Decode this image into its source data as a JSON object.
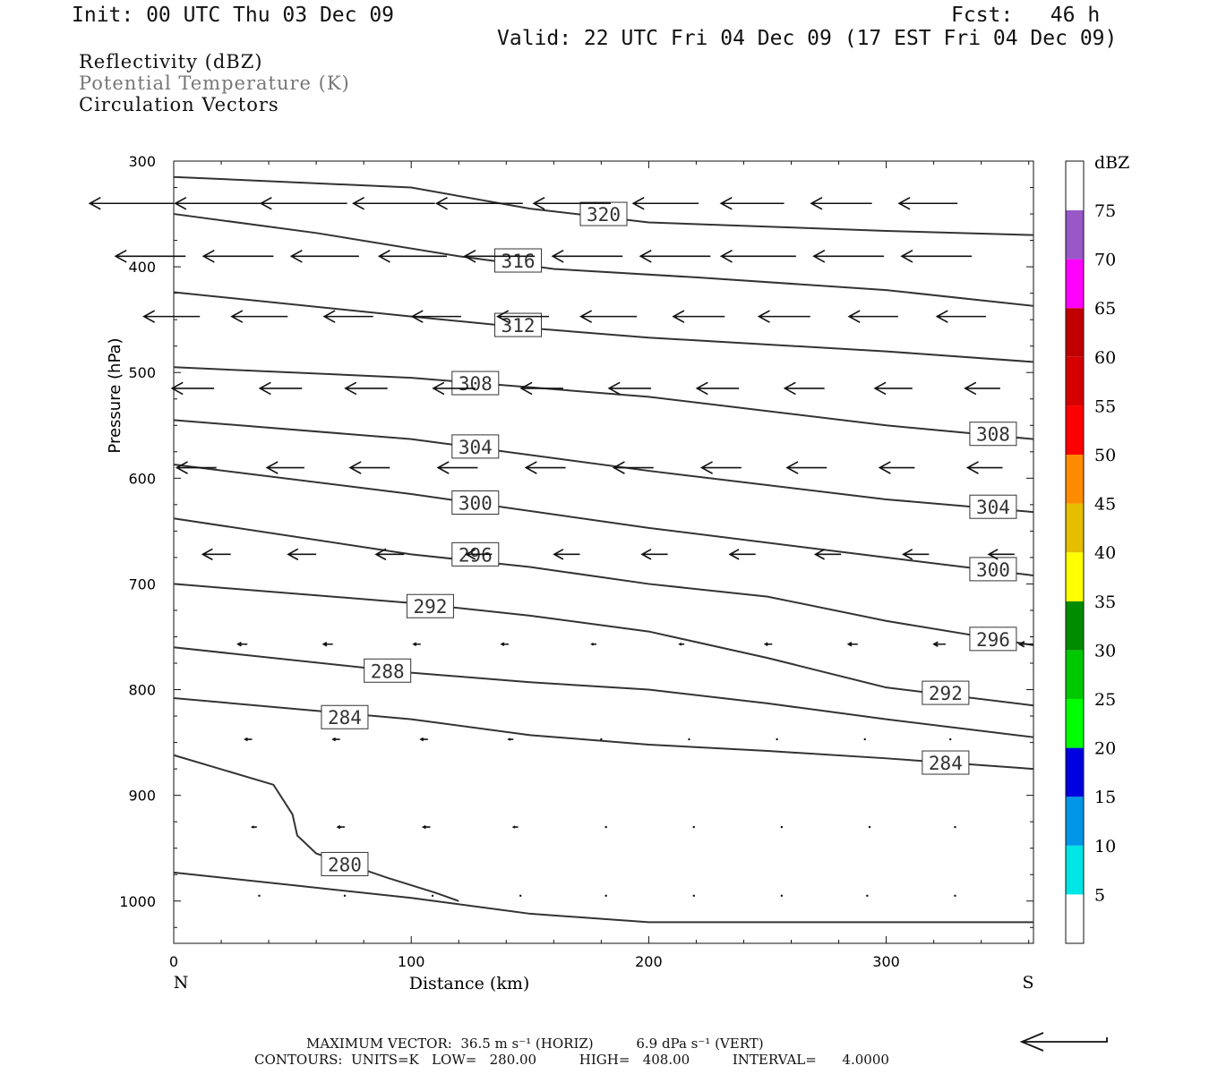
{
  "header": {
    "init": "Init: 00 UTC Thu 03 Dec 09",
    "fcst": "Fcst:   46 h",
    "valid": "Valid: 22 UTC Fri 04 Dec 09 (17 EST Fri 04 Dec 09)"
  },
  "fields": {
    "line1": "Reflectivity (dBZ)",
    "line2": "Potential Temperature (K)",
    "line3": "Circulation Vectors"
  },
  "chart_data": {
    "type": "cross-section",
    "xlabel": "Distance (km)",
    "ylabel": "Pressure (hPa)",
    "xlim": [
      0,
      362
    ],
    "ylim": [
      300,
      1040
    ],
    "x_ticks": [
      0,
      100,
      200,
      300
    ],
    "y_ticks": [
      300,
      400,
      500,
      600,
      700,
      800,
      900,
      1000
    ],
    "x_end_labels": {
      "left": "N",
      "right": "S"
    },
    "isentropes": [
      {
        "theta": 320,
        "x": [
          0,
          100,
          150,
          200,
          250,
          300,
          362
        ],
        "p": [
          315,
          325,
          345,
          358,
          362,
          366,
          370
        ],
        "labels": [
          [
            181,
            350
          ]
        ]
      },
      {
        "theta": 316,
        "x": [
          0,
          60,
          120,
          160,
          220,
          300,
          362
        ],
        "p": [
          350,
          368,
          390,
          402,
          410,
          422,
          437
        ],
        "labels": [
          [
            145,
            394
          ]
        ]
      },
      {
        "theta": 312,
        "x": [
          0,
          100,
          150,
          200,
          300,
          362
        ],
        "p": [
          424,
          447,
          458,
          467,
          480,
          490
        ],
        "labels": [
          [
            145,
            455
          ]
        ]
      },
      {
        "theta": 308,
        "x": [
          0,
          100,
          200,
          300,
          362
        ],
        "p": [
          495,
          505,
          523,
          550,
          563
        ],
        "labels": [
          [
            127,
            510
          ],
          [
            345,
            558
          ]
        ]
      },
      {
        "theta": 304,
        "x": [
          0,
          100,
          200,
          300,
          362
        ],
        "p": [
          545,
          563,
          593,
          620,
          632
        ],
        "labels": [
          [
            127,
            570
          ],
          [
            345,
            627
          ]
        ]
      },
      {
        "theta": 300,
        "x": [
          0,
          100,
          200,
          300,
          362
        ],
        "p": [
          587,
          615,
          647,
          675,
          692
        ],
        "labels": [
          [
            127,
            623
          ],
          [
            345,
            686
          ]
        ]
      },
      {
        "theta": 296,
        "x": [
          0,
          100,
          150,
          200,
          250,
          300,
          362
        ],
        "p": [
          638,
          672,
          684,
          700,
          712,
          735,
          758
        ],
        "labels": [
          [
            127,
            672
          ],
          [
            345,
            752
          ]
        ]
      },
      {
        "theta": 292,
        "x": [
          0,
          100,
          150,
          200,
          250,
          300,
          362
        ],
        "p": [
          700,
          718,
          730,
          745,
          770,
          798,
          815
        ],
        "labels": [
          [
            108,
            721
          ],
          [
            325,
            803
          ]
        ]
      },
      {
        "theta": 288,
        "x": [
          0,
          100,
          150,
          200,
          250,
          300,
          362
        ],
        "p": [
          760,
          784,
          793,
          800,
          813,
          828,
          845
        ],
        "labels": [
          [
            90,
            782
          ]
        ]
      },
      {
        "theta": 284,
        "x": [
          0,
          100,
          150,
          200,
          250,
          300,
          362
        ],
        "p": [
          808,
          828,
          843,
          852,
          858,
          865,
          875
        ],
        "labels": [
          [
            72,
            826
          ],
          [
            325,
            869
          ]
        ]
      },
      {
        "theta": 280,
        "x": [
          0,
          42,
          50,
          52,
          60,
          90,
          110,
          120
        ],
        "p": [
          862,
          890,
          918,
          938,
          955,
          978,
          992,
          1000
        ],
        "labels": [
          [
            72,
            965
          ]
        ]
      },
      {
        "theta": 280,
        "x": [
          0,
          50,
          100,
          150,
          200,
          300,
          362
        ],
        "p": [
          973,
          985,
          997,
          1012,
          1020,
          1020,
          1020
        ],
        "labels": []
      }
    ],
    "vectors": {
      "rows": [
        {
          "p": 340,
          "x": [
            0,
            37,
            73,
            110,
            147,
            184,
            221,
            257,
            294,
            330
          ],
          "u": [
            -36,
            -37,
            -37,
            -35,
            -37,
            -33,
            -28,
            -27,
            -26,
            -25
          ]
        },
        {
          "p": 390,
          "x": [
            5,
            42,
            78,
            115,
            152,
            189,
            226,
            262,
            299,
            336
          ],
          "u": [
            -30,
            -30,
            -29,
            -29,
            -30,
            -30,
            -30,
            -32,
            -30,
            -30
          ]
        },
        {
          "p": 447,
          "x": [
            11,
            48,
            84,
            121,
            158,
            195,
            232,
            268,
            305,
            342
          ],
          "u": [
            -24,
            -24,
            -21,
            -21,
            -22,
            -24,
            -22,
            -22,
            -21,
            -21
          ]
        },
        {
          "p": 515,
          "x": [
            17,
            54,
            90,
            127,
            164,
            201,
            238,
            274,
            311,
            348
          ],
          "u": [
            -18,
            -18,
            -18,
            -18,
            -18,
            -18,
            -18,
            -17,
            -16,
            -15
          ]
        },
        {
          "p": 590,
          "x": [
            18,
            55,
            91,
            128,
            165,
            202,
            239,
            275,
            312,
            349
          ],
          "u": [
            -17,
            -16,
            -17,
            -17,
            -17,
            -17,
            -17,
            -17,
            -15,
            -15
          ]
        },
        {
          "p": 672,
          "x": [
            24,
            60,
            97,
            134,
            171,
            208,
            245,
            281,
            318,
            354
          ],
          "u": [
            -12,
            -12,
            -12,
            -11,
            -11,
            -11,
            -11,
            -11,
            -11,
            -11
          ]
        },
        {
          "p": 757,
          "x": [
            31,
            67,
            104,
            141,
            178,
            215,
            252,
            288,
            325,
            362
          ],
          "u": [
            -4,
            -4,
            -3,
            -3,
            -2,
            -2,
            -3,
            -4,
            -5,
            -6
          ]
        },
        {
          "p": 847,
          "x": [
            33,
            70,
            107,
            143,
            180,
            217,
            254,
            291,
            327
          ],
          "u": [
            -3,
            -3,
            -3,
            -2,
            -1,
            -1,
            -1,
            -1,
            -1
          ]
        },
        {
          "p": 930,
          "x": [
            35,
            72,
            108,
            145,
            182,
            219,
            256,
            293,
            329
          ],
          "u": [
            -2,
            -3,
            -3,
            -2,
            -1,
            -1,
            -1,
            -1,
            -1
          ]
        },
        {
          "p": 995,
          "x": [
            36,
            72,
            109,
            146,
            182,
            219,
            256,
            292,
            329
          ],
          "u": [
            -1,
            -1,
            -1,
            -1,
            -1,
            -1,
            -1,
            -1,
            -1
          ]
        }
      ]
    },
    "colorbar": {
      "label": "dBZ",
      "levels": [
        "5",
        "10",
        "15",
        "20",
        "25",
        "30",
        "35",
        "40",
        "45",
        "50",
        "55",
        "60",
        "65",
        "70",
        "75"
      ],
      "colors": [
        "#00e5e5",
        "#0096e8",
        "#0000e0",
        "#00ff00",
        "#00c800",
        "#008c00",
        "#ffff00",
        "#e6be00",
        "#ff8c00",
        "#ff0000",
        "#d60000",
        "#c00000",
        "#ff00ff",
        "#9858c8",
        "#ffffff"
      ]
    }
  },
  "footer": {
    "line1": "MAXIMUM VECTOR:  36.5 m s⁻¹ (HORIZ)          6.9 dPa s⁻¹ (VERT)",
    "line2": "CONTOURS:  UNITS=K   LOW=   280.00          HIGH=   408.00          INTERVAL=      4.0000"
  }
}
